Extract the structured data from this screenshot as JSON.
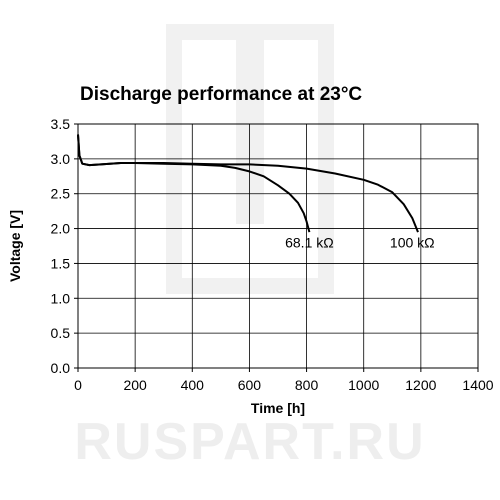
{
  "watermark": {
    "text": "RUSPART.RU"
  },
  "chart_data": {
    "type": "line",
    "title": "Discharge performance at 23°C",
    "xlabel": "Time [h]",
    "ylabel": "Voltage [V]",
    "xlim": [
      0,
      1400
    ],
    "ylim": [
      0,
      3.5
    ],
    "xticks": [
      0,
      200,
      400,
      600,
      800,
      1000,
      1200,
      1400
    ],
    "yticks": [
      0.0,
      0.5,
      1.0,
      1.5,
      2.0,
      2.5,
      3.0,
      3.5
    ],
    "ytick_labels": [
      "0.0",
      "0.5",
      "1.0",
      "1.5",
      "2.0",
      "2.5",
      "3.0",
      "3.5"
    ],
    "grid": true,
    "line_color": "#000000",
    "grid_color": "#000000",
    "series": [
      {
        "x": [
          0,
          5,
          15,
          40,
          80,
          150,
          200,
          300,
          400,
          500,
          550,
          600,
          650,
          700,
          740,
          770,
          790,
          800,
          810
        ],
        "y": [
          3.35,
          3.05,
          2.93,
          2.91,
          2.92,
          2.94,
          2.94,
          2.93,
          2.92,
          2.9,
          2.87,
          2.82,
          2.75,
          2.62,
          2.5,
          2.37,
          2.22,
          2.1,
          1.95
        ]
      },
      {
        "x": [
          0,
          5,
          15,
          40,
          80,
          150,
          200,
          300,
          400,
          500,
          600,
          700,
          800,
          900,
          1000,
          1050,
          1100,
          1140,
          1170,
          1190
        ],
        "y": [
          3.35,
          3.05,
          2.93,
          2.91,
          2.92,
          2.94,
          2.94,
          2.94,
          2.93,
          2.92,
          2.92,
          2.9,
          2.86,
          2.79,
          2.7,
          2.63,
          2.52,
          2.35,
          2.15,
          1.95
        ]
      }
    ],
    "annotations": [
      {
        "text": "68.1 kΩ",
        "x": 810,
        "y": 1.8
      },
      {
        "text": "100 kΩ",
        "x": 1170,
        "y": 1.8
      }
    ]
  }
}
